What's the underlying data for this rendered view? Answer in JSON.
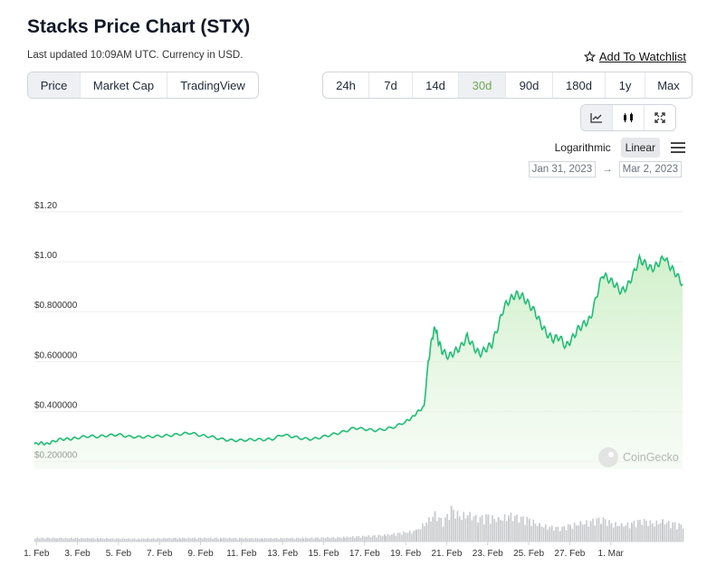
{
  "header": {
    "title": "Stacks Price Chart (STX)",
    "updated": "Last updated 10:09AM UTC. Currency in USD.",
    "watchlist": "Add To Watchlist"
  },
  "view_tabs": [
    {
      "label": "Price",
      "active": true
    },
    {
      "label": "Market Cap",
      "active": false
    },
    {
      "label": "TradingView",
      "active": false
    }
  ],
  "range_tabs": [
    {
      "label": "24h",
      "active": false
    },
    {
      "label": "7d",
      "active": false
    },
    {
      "label": "14d",
      "active": false
    },
    {
      "label": "30d",
      "active": true
    },
    {
      "label": "90d",
      "active": false
    },
    {
      "label": "180d",
      "active": false
    },
    {
      "label": "1y",
      "active": false
    },
    {
      "label": "Max",
      "active": false
    }
  ],
  "chart_types": [
    {
      "icon": "line-chart-icon",
      "active": true
    },
    {
      "icon": "candlestick-icon",
      "active": false
    },
    {
      "icon": "expand-icon",
      "active": false
    }
  ],
  "scale": {
    "log_label": "Logarithmic",
    "linear_label": "Linear",
    "active": "Linear"
  },
  "date_range": {
    "from": "Jan 31, 2023",
    "arrow": "→",
    "to": "Mar 2, 2023"
  },
  "watermark": "CoinGecko",
  "colors": {
    "line": "#1fbd74",
    "fill": "#d9f2d4",
    "volume": "#c7c9cc",
    "active_range": "#6aa84f"
  },
  "chart_data": {
    "type": "area",
    "title": "",
    "xlabel": "",
    "ylabel": "",
    "ylim": [
      0.17,
      1.25
    ],
    "y_ticks": [
      "$1.20",
      "$1.00",
      "$0.800000",
      "$0.600000",
      "$0.400000",
      "$0.200000"
    ],
    "y_tick_values": [
      1.2,
      1.0,
      0.8,
      0.6,
      0.4,
      0.2
    ],
    "x_ticks": [
      "1. Feb",
      "3. Feb",
      "5. Feb",
      "7. Feb",
      "9. Feb",
      "11. Feb",
      "13. Feb",
      "15. Feb",
      "17. Feb",
      "19. Feb",
      "21. Feb",
      "23. Feb",
      "25. Feb",
      "27. Feb",
      "1. Mar"
    ],
    "x_tick_days": [
      1,
      3,
      5,
      7,
      9,
      11,
      13,
      15,
      17,
      19,
      21,
      23,
      25,
      27,
      29
    ],
    "xlim_days": [
      0.9,
      30.5
    ],
    "x_unit": "day of period (Feb 1 = 1, Mar 1 = 29)",
    "series": [
      {
        "values": [
          [
            0.9,
            0.27
          ],
          [
            1.2,
            0.275
          ],
          [
            1.5,
            0.27
          ],
          [
            1.8,
            0.28
          ],
          [
            2.2,
            0.29
          ],
          [
            2.6,
            0.29
          ],
          [
            3.0,
            0.295
          ],
          [
            3.5,
            0.302
          ],
          [
            4.0,
            0.3
          ],
          [
            4.5,
            0.305
          ],
          [
            5.0,
            0.308
          ],
          [
            5.5,
            0.3
          ],
          [
            6.0,
            0.298
          ],
          [
            6.5,
            0.3
          ],
          [
            7.0,
            0.302
          ],
          [
            7.5,
            0.305
          ],
          [
            8.0,
            0.31
          ],
          [
            8.5,
            0.315
          ],
          [
            9.0,
            0.305
          ],
          [
            9.5,
            0.3
          ],
          [
            10.0,
            0.29
          ],
          [
            10.5,
            0.285
          ],
          [
            11.0,
            0.285
          ],
          [
            11.5,
            0.288
          ],
          [
            12.0,
            0.288
          ],
          [
            12.5,
            0.29
          ],
          [
            13.0,
            0.308
          ],
          [
            13.5,
            0.3
          ],
          [
            14.0,
            0.292
          ],
          [
            14.5,
            0.29
          ],
          [
            15.0,
            0.3
          ],
          [
            15.5,
            0.31
          ],
          [
            16.0,
            0.32
          ],
          [
            16.5,
            0.335
          ],
          [
            17.0,
            0.33
          ],
          [
            17.5,
            0.325
          ],
          [
            18.0,
            0.33
          ],
          [
            18.5,
            0.34
          ],
          [
            19.0,
            0.36
          ],
          [
            19.3,
            0.375
          ],
          [
            19.6,
            0.4
          ],
          [
            19.9,
            0.42
          ],
          [
            20.1,
            0.6
          ],
          [
            20.3,
            0.7
          ],
          [
            20.45,
            0.74
          ],
          [
            20.6,
            0.68
          ],
          [
            20.8,
            0.64
          ],
          [
            21.1,
            0.62
          ],
          [
            21.4,
            0.64
          ],
          [
            21.7,
            0.66
          ],
          [
            22.0,
            0.7
          ],
          [
            22.3,
            0.66
          ],
          [
            22.6,
            0.63
          ],
          [
            22.9,
            0.65
          ],
          [
            23.2,
            0.67
          ],
          [
            23.5,
            0.74
          ],
          [
            23.8,
            0.82
          ],
          [
            24.1,
            0.85
          ],
          [
            24.4,
            0.87
          ],
          [
            24.7,
            0.86
          ],
          [
            25.0,
            0.83
          ],
          [
            25.3,
            0.8
          ],
          [
            25.6,
            0.75
          ],
          [
            25.9,
            0.71
          ],
          [
            26.2,
            0.69
          ],
          [
            26.5,
            0.7
          ],
          [
            26.8,
            0.66
          ],
          [
            27.1,
            0.69
          ],
          [
            27.4,
            0.73
          ],
          [
            27.7,
            0.75
          ],
          [
            28.0,
            0.77
          ],
          [
            28.3,
            0.86
          ],
          [
            28.6,
            0.95
          ],
          [
            28.9,
            0.93
          ],
          [
            29.2,
            0.91
          ],
          [
            29.5,
            0.88
          ],
          [
            29.8,
            0.9
          ],
          [
            30.1,
            0.95
          ],
          [
            30.4,
            1.01
          ],
          [
            30.7,
            0.99
          ],
          [
            31.0,
            0.97
          ],
          [
            31.3,
            0.99
          ],
          [
            31.6,
            1.02
          ],
          [
            31.9,
            0.98
          ],
          [
            32.2,
            0.95
          ],
          [
            32.5,
            0.91
          ]
        ]
      }
    ],
    "volume": [
      [
        0.9,
        0.1
      ],
      [
        2.0,
        0.1
      ],
      [
        4.0,
        0.09
      ],
      [
        6.0,
        0.08
      ],
      [
        8.0,
        0.1
      ],
      [
        10.0,
        0.1
      ],
      [
        12.0,
        0.09
      ],
      [
        14.0,
        0.1
      ],
      [
        16.0,
        0.12
      ],
      [
        18.0,
        0.18
      ],
      [
        19.5,
        0.3
      ],
      [
        20.0,
        0.55
      ],
      [
        20.4,
        0.75
      ],
      [
        20.8,
        0.55
      ],
      [
        21.2,
        0.9
      ],
      [
        21.6,
        0.7
      ],
      [
        22.0,
        0.75
      ],
      [
        22.5,
        0.65
      ],
      [
        23.0,
        0.7
      ],
      [
        23.5,
        0.6
      ],
      [
        24.0,
        0.72
      ],
      [
        24.5,
        0.68
      ],
      [
        25.0,
        0.6
      ],
      [
        25.5,
        0.45
      ],
      [
        26.0,
        0.4
      ],
      [
        26.5,
        0.38
      ],
      [
        27.0,
        0.45
      ],
      [
        27.5,
        0.5
      ],
      [
        28.0,
        0.55
      ],
      [
        28.5,
        0.65
      ],
      [
        29.0,
        0.5
      ],
      [
        29.5,
        0.45
      ],
      [
        30.0,
        0.5
      ],
      [
        30.5,
        0.6
      ],
      [
        31.0,
        0.5
      ],
      [
        31.5,
        0.55
      ],
      [
        32.0,
        0.5
      ],
      [
        32.5,
        0.45
      ]
    ]
  }
}
